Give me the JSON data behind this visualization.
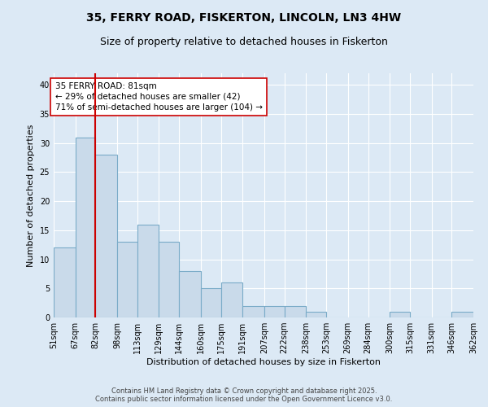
{
  "title1": "35, FERRY ROAD, FISKERTON, LINCOLN, LN3 4HW",
  "title2": "Size of property relative to detached houses in Fiskerton",
  "xlabel": "Distribution of detached houses by size in Fiskerton",
  "ylabel": "Number of detached properties",
  "bin_edges": [
    51,
    67,
    82,
    98,
    113,
    129,
    144,
    160,
    175,
    191,
    207,
    222,
    238,
    253,
    269,
    284,
    300,
    315,
    331,
    346,
    362
  ],
  "bar_heights": [
    12,
    31,
    28,
    13,
    16,
    13,
    8,
    5,
    6,
    2,
    2,
    2,
    1,
    0,
    0,
    0,
    1,
    0,
    0,
    1
  ],
  "bar_color": "#c9daea",
  "bar_edge_color": "#7aabc8",
  "vline_x": 82,
  "vline_color": "#cc0000",
  "annotation_text": "35 FERRY ROAD: 81sqm\n← 29% of detached houses are smaller (42)\n71% of semi-detached houses are larger (104) →",
  "annotation_box_color": "#ffffff",
  "annotation_box_edge": "#cc0000",
  "ylim": [
    0,
    42
  ],
  "yticks": [
    0,
    5,
    10,
    15,
    20,
    25,
    30,
    35,
    40
  ],
  "background_color": "#dce9f5",
  "plot_bg_color": "#dce9f5",
  "grid_color": "#ffffff",
  "footer1": "Contains HM Land Registry data © Crown copyright and database right 2025.",
  "footer2": "Contains public sector information licensed under the Open Government Licence v3.0.",
  "title1_fontsize": 10,
  "title2_fontsize": 9,
  "axis_label_fontsize": 8,
  "tick_fontsize": 7,
  "annotation_fontsize": 7.5,
  "footer_fontsize": 6
}
